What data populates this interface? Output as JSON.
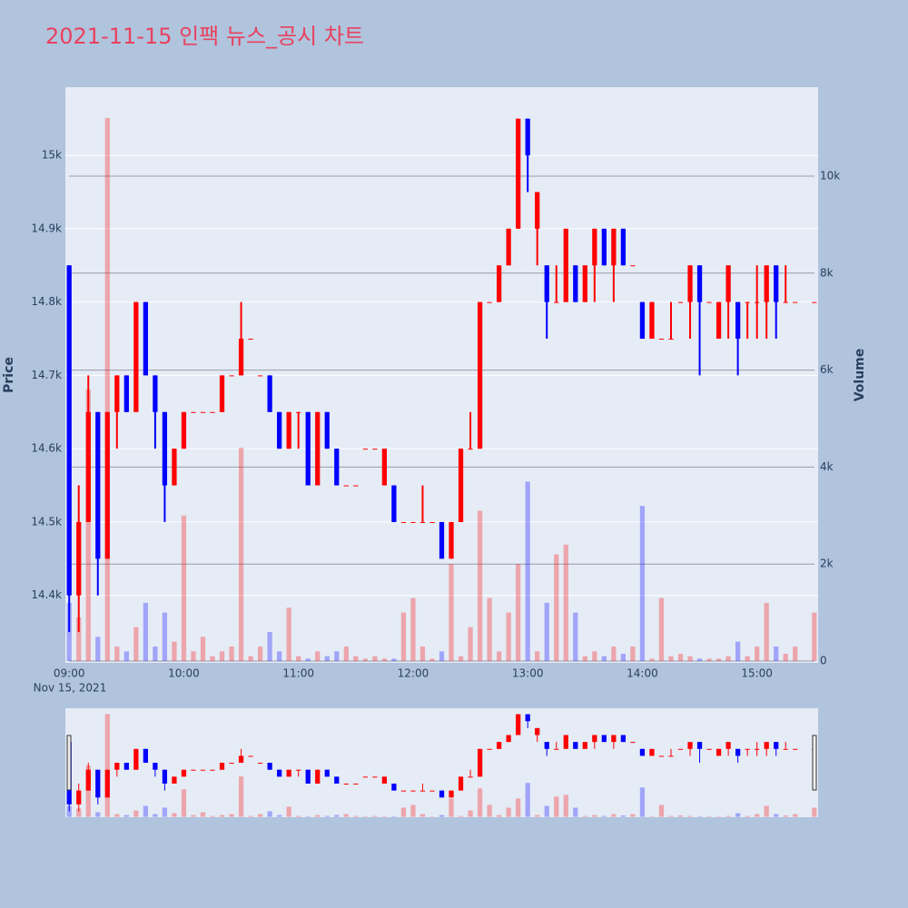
{
  "chart_data": {
    "type": "candlestick",
    "title": "2021-11-15 인팩 뉴스_공시 차트",
    "y_label": "Price",
    "y2_label": "Volume",
    "x_date_label": "Nov 15, 2021",
    "increasing_color": "#ff0000",
    "decreasing_color": "#0000ff",
    "x": [
      "09:00",
      "09:05",
      "09:10",
      "09:15",
      "09:20",
      "09:25",
      "09:30",
      "09:35",
      "09:40",
      "09:45",
      "09:50",
      "09:55",
      "10:00",
      "10:05",
      "10:10",
      "10:15",
      "10:20",
      "10:25",
      "10:30",
      "10:35",
      "10:40",
      "10:45",
      "10:50",
      "10:55",
      "11:00",
      "11:05",
      "11:10",
      "11:15",
      "11:20",
      "11:25",
      "11:30",
      "11:35",
      "11:40",
      "11:45",
      "11:50",
      "11:55",
      "12:00",
      "12:05",
      "12:10",
      "12:15",
      "12:20",
      "12:25",
      "12:30",
      "12:35",
      "12:40",
      "12:45",
      "12:50",
      "12:55",
      "13:00",
      "13:05",
      "13:10",
      "13:15",
      "13:20",
      "13:25",
      "13:30",
      "13:35",
      "13:40",
      "13:45",
      "13:50",
      "13:55",
      "14:00",
      "14:05",
      "14:10",
      "14:15",
      "14:20",
      "14:25",
      "14:30",
      "14:35",
      "14:40",
      "14:45",
      "14:50",
      "14:55",
      "15:00",
      "15:05",
      "15:10",
      "15:15",
      "15:20",
      "15:30"
    ],
    "open": [
      14850,
      14400,
      14500,
      14650,
      14450,
      14650,
      14700,
      14650,
      14800,
      14700,
      14650,
      14550,
      14600,
      14650,
      14650,
      14650,
      14650,
      14700,
      14700,
      14750,
      14700,
      14700,
      14650,
      14600,
      14650,
      14650,
      14550,
      14650,
      14600,
      14550,
      14550,
      14600,
      14600,
      14550,
      14550,
      14500,
      14500,
      14500,
      14500,
      14500,
      14450,
      14500,
      14600,
      14600,
      14800,
      14800,
      14850,
      14900,
      15050,
      14900,
      14850,
      14800,
      14800,
      14850,
      14800,
      14850,
      14900,
      14850,
      14900,
      14850,
      14800,
      14750,
      14750,
      14750,
      14800,
      14800,
      14850,
      14800,
      14750,
      14800,
      14800,
      14800,
      14800,
      14800,
      14850,
      14800,
      14800,
      14800
    ],
    "high": [
      14850,
      14550,
      14700,
      14650,
      14650,
      14700,
      14700,
      14800,
      14800,
      14700,
      14650,
      14600,
      14650,
      14650,
      14650,
      14650,
      14700,
      14700,
      14800,
      14750,
      14700,
      14700,
      14650,
      14650,
      14650,
      14650,
      14650,
      14650,
      14600,
      14550,
      14550,
      14600,
      14600,
      14600,
      14550,
      14500,
      14500,
      14550,
      14500,
      14500,
      14500,
      14600,
      14650,
      14800,
      14800,
      14850,
      14900,
      15050,
      15050,
      14950,
      14850,
      14850,
      14900,
      14850,
      14850,
      14900,
      14900,
      14900,
      14900,
      14850,
      14800,
      14800,
      14750,
      14800,
      14800,
      14850,
      14850,
      14800,
      14800,
      14850,
      14800,
      14800,
      14850,
      14850,
      14850,
      14850,
      14800,
      14800
    ],
    "low": [
      14350,
      14350,
      14500,
      14400,
      14450,
      14600,
      14650,
      14650,
      14700,
      14600,
      14500,
      14550,
      14600,
      14650,
      14650,
      14650,
      14650,
      14700,
      14700,
      14750,
      14700,
      14650,
      14600,
      14600,
      14600,
      14550,
      14550,
      14600,
      14550,
      14550,
      14550,
      14600,
      14600,
      14550,
      14500,
      14500,
      14500,
      14500,
      14500,
      14450,
      14450,
      14500,
      14600,
      14600,
      14800,
      14800,
      14850,
      14900,
      14950,
      14850,
      14750,
      14800,
      14800,
      14800,
      14800,
      14800,
      14850,
      14800,
      14850,
      14850,
      14750,
      14750,
      14750,
      14750,
      14800,
      14750,
      14700,
      14800,
      14750,
      14750,
      14700,
      14750,
      14750,
      14750,
      14750,
      14800,
      14800,
      14800
    ],
    "close": [
      14400,
      14500,
      14650,
      14450,
      14650,
      14700,
      14650,
      14800,
      14700,
      14650,
      14550,
      14600,
      14650,
      14650,
      14650,
      14650,
      14700,
      14700,
      14750,
      14750,
      14700,
      14650,
      14600,
      14650,
      14650,
      14550,
      14650,
      14600,
      14550,
      14550,
      14550,
      14600,
      14600,
      14600,
      14500,
      14500,
      14500,
      14500,
      14500,
      14450,
      14500,
      14600,
      14600,
      14800,
      14800,
      14850,
      14900,
      15050,
      15000,
      14950,
      14800,
      14800,
      14900,
      14800,
      14850,
      14900,
      14850,
      14900,
      14850,
      14850,
      14750,
      14800,
      14750,
      14750,
      14800,
      14850,
      14800,
      14800,
      14800,
      14850,
      14750,
      14800,
      14800,
      14850,
      14800,
      14800,
      14800,
      14800
    ],
    "volume": [
      1200,
      900,
      5600,
      500,
      11200,
      300,
      200,
      700,
      1200,
      300,
      1000,
      400,
      3000,
      200,
      500,
      100,
      200,
      300,
      4400,
      100,
      300,
      600,
      200,
      1100,
      100,
      50,
      200,
      100,
      200,
      300,
      100,
      50,
      100,
      50,
      50,
      1000,
      1300,
      300,
      50,
      200,
      2000,
      100,
      700,
      3100,
      1300,
      200,
      1000,
      2000,
      3700,
      200,
      1200,
      2200,
      2400,
      1000,
      100,
      200,
      100,
      300,
      150,
      300,
      3200,
      50,
      1300,
      100,
      150,
      100,
      50,
      50,
      50,
      100,
      400,
      100,
      300,
      1200,
      300,
      150,
      300,
      1000
    ],
    "xlim": [
      "08:58",
      "15:32"
    ],
    "xticks": [
      "09:00",
      "10:00",
      "11:00",
      "12:00",
      "13:00",
      "14:00",
      "15:00"
    ],
    "ylim": [
      14308,
      15093
    ],
    "yticks": [
      {
        "value": 14400,
        "label": "14.4k"
      },
      {
        "value": 14500,
        "label": "14.5k"
      },
      {
        "value": 14600,
        "label": "14.6k"
      },
      {
        "value": 14700,
        "label": "14.7k"
      },
      {
        "value": 14800,
        "label": "14.8k"
      },
      {
        "value": 14900,
        "label": "14.9k"
      },
      {
        "value": 15000,
        "label": "15k"
      }
    ],
    "y2lim": [
      -37,
      11835
    ],
    "y2ticks": [
      0,
      {
        "value": 2000,
        "label": "2k"
      },
      {
        "value": 4000,
        "label": "4k"
      },
      {
        "value": 6000,
        "label": "6k"
      },
      {
        "value": 8000,
        "label": "8k"
      },
      {
        "value": 10000,
        "label": "10k"
      }
    ],
    "rangeslider": true
  }
}
